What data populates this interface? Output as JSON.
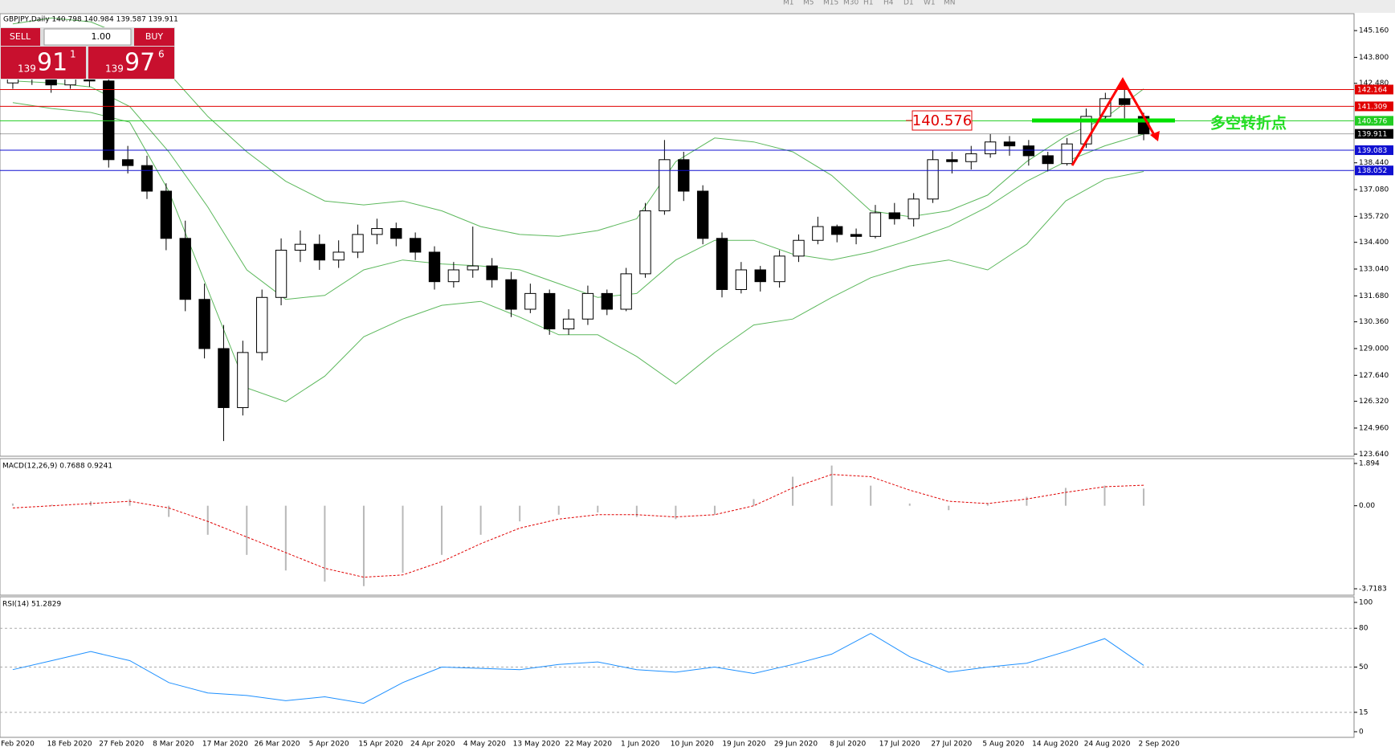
{
  "toolbar": {
    "timeframes": [
      "M1",
      "M5",
      "M15",
      "M30",
      "H1",
      "H4",
      "D1",
      "W1",
      "MN"
    ]
  },
  "trade_panel": {
    "sell": "SELL",
    "buy": "BUY",
    "lot": "1.00",
    "sell_price": {
      "big": "139",
      "main": "91",
      "small": "1"
    },
    "buy_price": {
      "big": "139",
      "main": "97",
      "small": "6"
    }
  },
  "time_axis": {
    "labels": [
      "Feb 2020",
      "18 Feb 2020",
      "27 Feb 2020",
      "8 Mar 2020",
      "17 Mar 2020",
      "26 Mar 2020",
      "5 Apr 2020",
      "15 Apr 2020",
      "24 Apr 2020",
      "4 May 2020",
      "13 May 2020",
      "22 May 2020",
      "1 Jun 2020",
      "10 Jun 2020",
      "19 Jun 2020",
      "29 Jun 2020",
      "8 Jul 2020",
      "17 Jul 2020",
      "27 Jul 2020",
      "5 Aug 2020",
      "14 Aug 2020",
      "24 Aug 2020",
      "2 Sep 2020"
    ]
  },
  "chart_data": [
    {
      "type": "candlestick",
      "title": "GBPJPY,Daily  140.798 140.984 139.587 139.911",
      "up_color": "#ffffff",
      "down_color": "#000000",
      "ylim": [
        123.57,
        145.98
      ],
      "yticks": [
        {
          "value": 145.16,
          "label": "145.160"
        },
        {
          "value": 143.8,
          "label": "143.800"
        },
        {
          "value": 142.48,
          "label": "142.480"
        },
        {
          "value": 138.44,
          "label": "138.440"
        },
        {
          "value": 137.08,
          "label": "137.080"
        },
        {
          "value": 135.72,
          "label": "135.720"
        },
        {
          "value": 134.4,
          "label": "134.400"
        },
        {
          "value": 133.04,
          "label": "133.040"
        },
        {
          "value": 131.68,
          "label": "131.680"
        },
        {
          "value": 130.36,
          "label": "130.360"
        },
        {
          "value": 129,
          "label": "129.000"
        },
        {
          "value": 127.64,
          "label": "127.640"
        },
        {
          "value": 126.32,
          "label": "126.320"
        },
        {
          "value": 124.96,
          "label": "124.960"
        },
        {
          "value": 123.64,
          "label": "123.640"
        }
      ],
      "ohlc": [
        [
          142.5,
          143.2,
          142.2,
          142.9
        ],
        [
          142.9,
          143.3,
          142.4,
          142.7
        ],
        [
          142.7,
          143.0,
          142.0,
          142.4
        ],
        [
          142.4,
          143.4,
          142.2,
          143.0
        ],
        [
          143.0,
          143.6,
          142.3,
          142.6
        ],
        [
          142.6,
          142.8,
          138.2,
          138.6
        ],
        [
          138.6,
          139.3,
          137.9,
          138.3
        ],
        [
          138.3,
          138.8,
          136.6,
          137.0
        ],
        [
          137.0,
          137.4,
          134.0,
          134.6
        ],
        [
          134.6,
          135.5,
          130.9,
          131.5
        ],
        [
          131.5,
          132.3,
          128.5,
          129.0
        ],
        [
          129.0,
          130.2,
          124.3,
          126.0
        ],
        [
          126.0,
          129.4,
          125.6,
          128.8
        ],
        [
          128.8,
          132.0,
          128.4,
          131.6
        ],
        [
          131.6,
          134.6,
          131.2,
          134.0
        ],
        [
          134.0,
          135.0,
          133.4,
          134.3
        ],
        [
          134.3,
          134.8,
          133.0,
          133.5
        ],
        [
          133.5,
          134.5,
          133.1,
          133.9
        ],
        [
          133.9,
          135.3,
          133.6,
          134.8
        ],
        [
          134.8,
          135.6,
          134.3,
          135.1
        ],
        [
          135.1,
          135.4,
          134.2,
          134.6
        ],
        [
          134.6,
          134.9,
          133.5,
          133.9
        ],
        [
          133.9,
          134.2,
          132.0,
          132.4
        ],
        [
          132.4,
          133.4,
          132.1,
          133.0
        ],
        [
          133.0,
          135.2,
          132.6,
          133.2
        ],
        [
          133.2,
          133.6,
          132.1,
          132.5
        ],
        [
          132.5,
          132.9,
          130.6,
          131.0
        ],
        [
          131.0,
          132.3,
          130.8,
          131.8
        ],
        [
          131.8,
          132.0,
          129.7,
          130.0
        ],
        [
          130.0,
          131.0,
          129.7,
          130.5
        ],
        [
          130.5,
          132.2,
          130.2,
          131.8
        ],
        [
          131.8,
          132.0,
          130.7,
          131.0
        ],
        [
          131.0,
          133.1,
          130.9,
          132.8
        ],
        [
          132.8,
          136.4,
          132.6,
          136.0
        ],
        [
          136.0,
          139.6,
          135.8,
          138.6
        ],
        [
          138.6,
          139.0,
          136.5,
          137.0
        ],
        [
          137.0,
          137.3,
          134.3,
          134.6
        ],
        [
          134.6,
          134.9,
          131.6,
          132.0
        ],
        [
          132.0,
          133.4,
          131.8,
          133.0
        ],
        [
          133.0,
          133.2,
          131.9,
          132.4
        ],
        [
          132.4,
          134.0,
          132.1,
          133.7
        ],
        [
          133.7,
          134.8,
          133.4,
          134.5
        ],
        [
          134.5,
          135.7,
          134.3,
          135.2
        ],
        [
          135.2,
          135.3,
          134.4,
          134.8
        ],
        [
          134.8,
          135.1,
          134.3,
          134.7
        ],
        [
          134.7,
          136.3,
          134.6,
          135.9
        ],
        [
          135.9,
          136.4,
          135.3,
          135.6
        ],
        [
          135.6,
          136.9,
          135.2,
          136.6
        ],
        [
          136.6,
          139.1,
          136.4,
          138.6
        ],
        [
          138.6,
          139.0,
          137.9,
          138.5
        ],
        [
          138.5,
          139.3,
          138.1,
          138.9
        ],
        [
          138.9,
          139.9,
          138.7,
          139.5
        ],
        [
          139.5,
          139.8,
          138.8,
          139.3
        ],
        [
          139.3,
          139.6,
          138.3,
          138.8
        ],
        [
          138.8,
          139.0,
          138.0,
          138.4
        ],
        [
          138.4,
          139.7,
          138.3,
          139.4
        ],
        [
          139.4,
          141.2,
          139.2,
          140.8
        ],
        [
          140.8,
          142.0,
          140.5,
          141.7
        ],
        [
          141.7,
          142.2,
          140.7,
          141.4
        ],
        [
          140.798,
          140.984,
          139.587,
          139.911
        ]
      ],
      "overlays": [
        {
          "color": "#5cb85c",
          "values": [
            145.5,
            145.8,
            145.6,
            144.8,
            143.0,
            140.8,
            139.0,
            137.5,
            136.5,
            136.3,
            136.5,
            136.0,
            135.2,
            134.8,
            134.7,
            135.0,
            135.6,
            138.5,
            139.7,
            139.5,
            139.0,
            137.8,
            136.0,
            135.7,
            136.0,
            136.8,
            138.5,
            139.8,
            140.7,
            142.2
          ]
        },
        {
          "color": "#5cb85c",
          "values": [
            142.6,
            142.5,
            142.3,
            141.3,
            139.0,
            136.2,
            133.0,
            131.5,
            131.7,
            133.0,
            133.5,
            133.3,
            133.2,
            133.0,
            132.3,
            131.6,
            131.8,
            133.5,
            134.5,
            134.5,
            133.8,
            133.5,
            133.9,
            134.5,
            135.2,
            136.2,
            137.5,
            138.5,
            139.3,
            139.9
          ]
        },
        {
          "color": "#5cb85c",
          "values": [
            141.5,
            141.2,
            141.0,
            140.5,
            137.0,
            132.0,
            127.0,
            126.3,
            127.6,
            129.6,
            130.5,
            131.2,
            131.4,
            130.6,
            129.7,
            129.7,
            128.6,
            127.2,
            128.8,
            130.2,
            130.5,
            131.6,
            132.6,
            133.2,
            133.5,
            133.0,
            134.3,
            136.5,
            137.6,
            138.0
          ]
        }
      ],
      "levels": [
        {
          "value": 142.164,
          "color": "#e00000"
        },
        {
          "value": 141.309,
          "color": "#e00000"
        },
        {
          "value": 140.576,
          "color": "#22cc22"
        },
        {
          "value": 139.911,
          "color": "#000000"
        },
        {
          "value": 139.083,
          "color": "#1010d0"
        },
        {
          "value": 138.052,
          "color": "#1010d0"
        }
      ],
      "annotation": "多空转折点"
    },
    {
      "type": "macd",
      "title": "MACD(12,26,9) 0.7688 0.9241",
      "color": "#b8b8b8",
      "ylim": [
        -3.969,
        2.074
      ],
      "yticks": [
        1.894,
        {
          "value": 0,
          "label": "0.00"
        },
        -3.7183
      ],
      "values": [
        0.1,
        0.05,
        0.2,
        0.3,
        -0.5,
        -1.3,
        -2.2,
        -2.9,
        -3.4,
        -3.6,
        -3.0,
        -2.2,
        -1.3,
        -0.7,
        -0.4,
        -0.3,
        -0.5,
        -0.6,
        -0.4,
        0.3,
        1.3,
        1.8,
        0.9,
        0.1,
        -0.2,
        0.1,
        0.4,
        0.8,
        0.9,
        0.77
      ],
      "signal": {
        "color": "#e00000",
        "values": [
          -0.1,
          0.0,
          0.1,
          0.2,
          -0.1,
          -0.7,
          -1.4,
          -2.1,
          -2.8,
          -3.2,
          -3.1,
          -2.5,
          -1.7,
          -1.0,
          -0.6,
          -0.4,
          -0.4,
          -0.5,
          -0.4,
          0.0,
          0.8,
          1.4,
          1.3,
          0.7,
          0.2,
          0.1,
          0.3,
          0.6,
          0.85,
          0.92
        ]
      }
    },
    {
      "type": "line",
      "title": "RSI(14) 51.2829",
      "color": "#1e90ff",
      "ylim": [
        -3.73,
        103.73
      ],
      "yticks": [
        100,
        80,
        50,
        15,
        0
      ],
      "levels": [
        80,
        50,
        15
      ],
      "values": [
        48,
        55,
        62,
        55,
        38,
        30,
        28,
        24,
        27,
        22,
        38,
        50,
        49,
        48,
        52,
        54,
        48,
        46,
        50,
        45,
        52,
        60,
        76,
        58,
        46,
        50,
        53,
        62,
        72,
        51.2829
      ]
    }
  ]
}
